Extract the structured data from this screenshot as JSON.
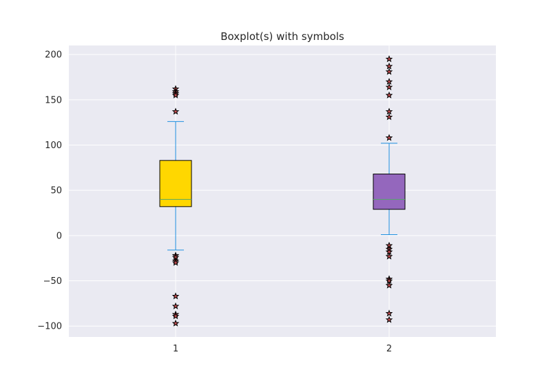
{
  "chart_data": {
    "type": "box",
    "title": "Boxplot(s) with symbols",
    "xlabel": "",
    "ylabel": "",
    "ylim": [
      -112,
      210
    ],
    "yticks": [
      200,
      150,
      100,
      50,
      0,
      -50,
      -100
    ],
    "ytick_labels": [
      "200",
      "150",
      "100",
      "50",
      "0",
      "−50",
      "−100"
    ],
    "grid": true,
    "flier_marker": "star",
    "series": [
      {
        "category": "1",
        "q1": 32,
        "median": 40,
        "q3": 83,
        "whisker_low": -16,
        "whisker_high": 126,
        "outliers": [
          162,
          159,
          157,
          155,
          137,
          -22,
          -24,
          -28,
          -30,
          -67,
          -78,
          -87,
          -89,
          -97
        ]
      },
      {
        "category": "2",
        "q1": 29,
        "median": 40,
        "q3": 68,
        "whisker_low": 1,
        "whisker_high": 102,
        "outliers": [
          195,
          187,
          181,
          170,
          164,
          155,
          137,
          131,
          108,
          -11,
          -15,
          -18,
          -23,
          -48,
          -50,
          -55,
          -86,
          -93
        ]
      }
    ],
    "colors": {
      "background": "#eaeaf2",
      "grid": "#ffffff",
      "whisker": "#1e90e0",
      "median": "#55a868",
      "box_1": "#ffd700",
      "box_2": "#9467bd",
      "box_edge": "#000000",
      "flier_fill": "#c44e52",
      "flier_edge": "#000000"
    }
  }
}
